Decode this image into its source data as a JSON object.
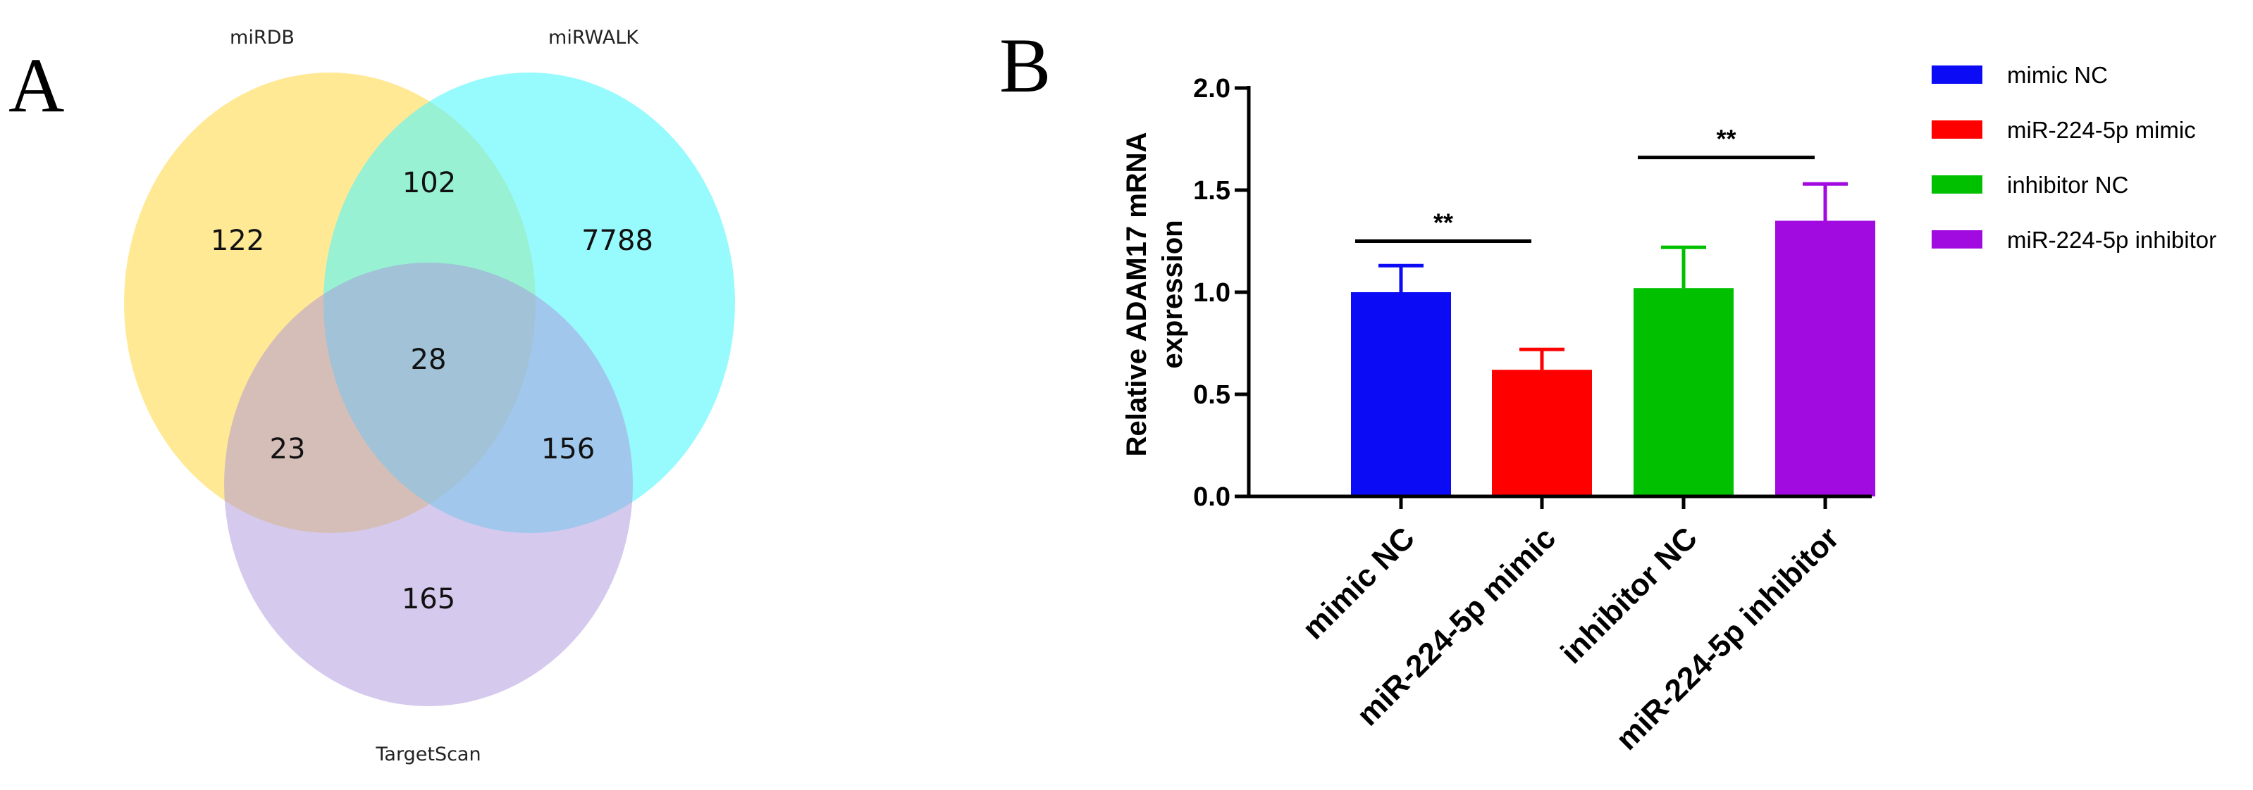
{
  "panels": {
    "a_letter": "A",
    "b_letter": "B"
  },
  "venn": {
    "sets": [
      {
        "name": "miRDB",
        "color": "#FFE37A"
      },
      {
        "name": "miRWALK",
        "color": "#52F7FB"
      },
      {
        "name": "TargetScan",
        "color": "#AB94DB"
      }
    ],
    "regions": {
      "miRDB_only": "122",
      "miRDB_miRWALK": "102",
      "miRWALK_only": "7788",
      "all_three": "28",
      "miRDB_TargetScan": "23",
      "miRWALK_TargetScan": "156",
      "TargetScan_only": "165"
    }
  },
  "chart_data": {
    "type": "bar",
    "title": "",
    "xlabel": "",
    "ylabel_line1": "Relative ADAM17  mRNA",
    "ylabel_line2": "expression",
    "ylim": [
      0,
      2.0
    ],
    "yticks": [
      "0.0",
      "0.5",
      "1.0",
      "1.5",
      "2.0"
    ],
    "ytick_values": [
      0,
      0.5,
      1.0,
      1.5,
      2.0
    ],
    "categories": [
      "mimic NC",
      "miR-224-5p mimic",
      "inhibitor NC",
      "miR-224-5p inhibitor"
    ],
    "values": [
      1.0,
      0.62,
      1.02,
      1.35
    ],
    "errors": [
      0.13,
      0.1,
      0.2,
      0.18
    ],
    "colors": [
      "#0B0BF5",
      "#FF0000",
      "#00C000",
      "#A10BE0"
    ],
    "legend": [
      "mimic NC",
      "miR-224-5p mimic",
      "inhibitor NC",
      "miR-224-5p inhibitor"
    ],
    "legend_position": "top-right",
    "significance": [
      {
        "between": [
          0,
          1
        ],
        "label": "**",
        "level": 1.25
      },
      {
        "between": [
          2,
          3
        ],
        "label": "**",
        "level": 1.66
      }
    ]
  }
}
